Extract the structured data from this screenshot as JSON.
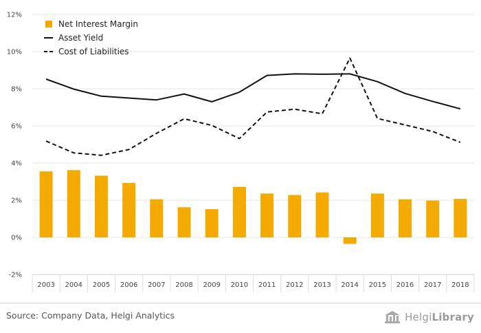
{
  "chart_data": {
    "type": "bar+line",
    "categories": [
      "2003",
      "2004",
      "2005",
      "2006",
      "2007",
      "2008",
      "2009",
      "2010",
      "2011",
      "2012",
      "2013",
      "2014",
      "2015",
      "2016",
      "2017",
      "2018"
    ],
    "series": [
      {
        "name": "Net Interest Margin",
        "kind": "bar",
        "color": "#F5AA00",
        "values": [
          3.55,
          3.62,
          3.32,
          2.93,
          2.05,
          1.62,
          1.52,
          2.72,
          2.36,
          2.28,
          2.42,
          -0.35,
          2.36,
          2.05,
          1.98,
          2.07
        ]
      },
      {
        "name": "Asset Yield",
        "kind": "line",
        "dash": "solid",
        "color": "#111111",
        "values": [
          8.52,
          7.98,
          7.6,
          7.5,
          7.4,
          7.72,
          7.3,
          7.82,
          8.72,
          8.8,
          8.78,
          8.8,
          8.38,
          7.75,
          7.32,
          6.92
        ]
      },
      {
        "name": "Cost of Liabilities",
        "kind": "line",
        "dash": "dashed",
        "color": "#111111",
        "values": [
          5.18,
          4.55,
          4.42,
          4.73,
          5.6,
          6.38,
          6.03,
          5.32,
          6.75,
          6.9,
          6.65,
          9.65,
          6.4,
          6.05,
          5.7,
          5.12
        ]
      }
    ],
    "y_ticks": [
      "12%",
      "10%",
      "8%",
      "6%",
      "4%",
      "2%",
      "0%",
      "-2%"
    ],
    "ylim": [
      -2,
      12
    ],
    "y_unit": "%",
    "grid": true,
    "legend_position": "top-left"
  },
  "footer": {
    "source": "Source: Company Data, Helgi Analytics",
    "brand_light": "Helgi",
    "brand_bold": "Library"
  }
}
